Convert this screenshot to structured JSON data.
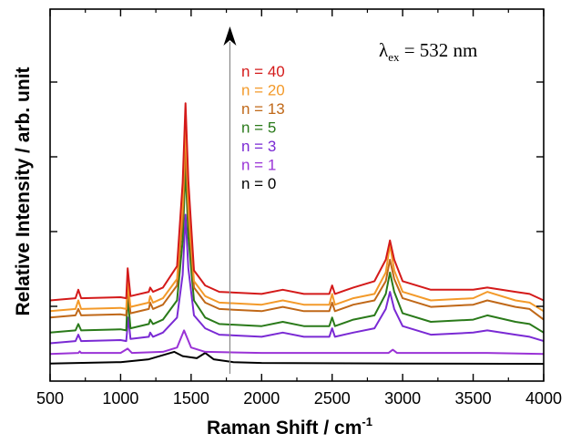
{
  "chart_data": {
    "type": "line",
    "xlabel": "Raman Shift / cm",
    "xlabel_sup": "-1",
    "ylabel": "Relative Intensity / arb. unit",
    "xlim": [
      500,
      4000
    ],
    "ylim": [
      0,
      10
    ],
    "x_ticks": [
      500,
      1000,
      1500,
      2000,
      2500,
      3000,
      3500,
      4000
    ],
    "y_ticks": [
      2.5,
      5,
      7.5
    ],
    "y_tick_labels_shown": false,
    "legend_position": "top-center",
    "annotation": {
      "lambda": "λ",
      "sub": "ex",
      "value": " = 532 nm"
    },
    "arrow": {
      "x": 1775,
      "y_from": 0.3,
      "y_to": 11.5,
      "direction": "up"
    },
    "series": [
      {
        "name": "n = 0",
        "color": "#000000",
        "points": [
          [
            500,
            0.05
          ],
          [
            1000,
            0.12
          ],
          [
            1200,
            0.25
          ],
          [
            1380,
            0.6
          ],
          [
            1440,
            0.4
          ],
          [
            1540,
            0.3
          ],
          [
            1600,
            0.55
          ],
          [
            1660,
            0.25
          ],
          [
            1800,
            0.12
          ],
          [
            2000,
            0.08
          ],
          [
            3000,
            0.05
          ],
          [
            4000,
            0.04
          ]
        ]
      },
      {
        "name": "n = 1",
        "color": "#9a33d6",
        "points": [
          [
            500,
            0.5
          ],
          [
            700,
            0.55
          ],
          [
            710,
            0.62
          ],
          [
            720,
            0.55
          ],
          [
            1000,
            0.55
          ],
          [
            1050,
            0.75
          ],
          [
            1080,
            0.55
          ],
          [
            1300,
            0.6
          ],
          [
            1400,
            0.8
          ],
          [
            1450,
            1.6
          ],
          [
            1500,
            0.8
          ],
          [
            1600,
            0.6
          ],
          [
            2000,
            0.55
          ],
          [
            2900,
            0.55
          ],
          [
            2930,
            0.7
          ],
          [
            2960,
            0.55
          ],
          [
            3600,
            0.55
          ],
          [
            4000,
            0.5
          ]
        ]
      },
      {
        "name": "n = 3",
        "color": "#7a2ad4",
        "points": [
          [
            500,
            1.0
          ],
          [
            680,
            1.1
          ],
          [
            700,
            1.4
          ],
          [
            720,
            1.1
          ],
          [
            1000,
            1.15
          ],
          [
            1040,
            1.1
          ],
          [
            1055,
            2.2
          ],
          [
            1070,
            1.2
          ],
          [
            1200,
            1.3
          ],
          [
            1210,
            1.5
          ],
          [
            1230,
            1.3
          ],
          [
            1300,
            1.5
          ],
          [
            1400,
            2.2
          ],
          [
            1440,
            4.2
          ],
          [
            1460,
            7.0
          ],
          [
            1480,
            4.5
          ],
          [
            1520,
            2.3
          ],
          [
            1600,
            1.7
          ],
          [
            1700,
            1.4
          ],
          [
            2000,
            1.3
          ],
          [
            2150,
            1.5
          ],
          [
            2300,
            1.3
          ],
          [
            2480,
            1.3
          ],
          [
            2500,
            1.7
          ],
          [
            2520,
            1.3
          ],
          [
            2650,
            1.5
          ],
          [
            2800,
            1.7
          ],
          [
            2880,
            2.6
          ],
          [
            2910,
            3.4
          ],
          [
            2940,
            2.6
          ],
          [
            3000,
            1.8
          ],
          [
            3200,
            1.4
          ],
          [
            3500,
            1.5
          ],
          [
            3600,
            1.6
          ],
          [
            3800,
            1.4
          ],
          [
            3900,
            1.3
          ],
          [
            4000,
            1.1
          ]
        ]
      },
      {
        "name": "n = 5",
        "color": "#2a7a1a",
        "points": [
          [
            500,
            1.5
          ],
          [
            680,
            1.6
          ],
          [
            700,
            1.9
          ],
          [
            720,
            1.6
          ],
          [
            1000,
            1.65
          ],
          [
            1040,
            1.6
          ],
          [
            1050,
            3.2
          ],
          [
            1070,
            1.7
          ],
          [
            1200,
            1.9
          ],
          [
            1210,
            2.1
          ],
          [
            1230,
            1.9
          ],
          [
            1300,
            2.1
          ],
          [
            1400,
            3.0
          ],
          [
            1440,
            5.8
          ],
          [
            1460,
            9.2
          ],
          [
            1480,
            6.0
          ],
          [
            1520,
            3.0
          ],
          [
            1600,
            2.2
          ],
          [
            1700,
            1.9
          ],
          [
            2000,
            1.8
          ],
          [
            2150,
            2.0
          ],
          [
            2300,
            1.8
          ],
          [
            2480,
            1.8
          ],
          [
            2500,
            2.2
          ],
          [
            2520,
            1.8
          ],
          [
            2650,
            2.1
          ],
          [
            2800,
            2.3
          ],
          [
            2880,
            3.3
          ],
          [
            2910,
            4.3
          ],
          [
            2940,
            3.4
          ],
          [
            3000,
            2.4
          ],
          [
            3200,
            2.0
          ],
          [
            3500,
            2.1
          ],
          [
            3600,
            2.3
          ],
          [
            3800,
            2.0
          ],
          [
            3900,
            1.9
          ],
          [
            4000,
            1.5
          ]
        ]
      },
      {
        "name": "n = 13",
        "color": "#c06818",
        "points": [
          [
            500,
            2.2
          ],
          [
            680,
            2.3
          ],
          [
            700,
            2.6
          ],
          [
            720,
            2.3
          ],
          [
            1000,
            2.35
          ],
          [
            1040,
            2.3
          ],
          [
            1050,
            3.6
          ],
          [
            1070,
            2.4
          ],
          [
            1200,
            2.6
          ],
          [
            1210,
            2.9
          ],
          [
            1230,
            2.6
          ],
          [
            1300,
            2.8
          ],
          [
            1400,
            3.7
          ],
          [
            1440,
            6.8
          ],
          [
            1460,
            10.3
          ],
          [
            1480,
            7.0
          ],
          [
            1520,
            3.6
          ],
          [
            1600,
            2.9
          ],
          [
            1700,
            2.6
          ],
          [
            2000,
            2.5
          ],
          [
            2150,
            2.7
          ],
          [
            2300,
            2.5
          ],
          [
            2480,
            2.5
          ],
          [
            2500,
            2.9
          ],
          [
            2520,
            2.5
          ],
          [
            2650,
            2.8
          ],
          [
            2800,
            3.0
          ],
          [
            2880,
            3.9
          ],
          [
            2910,
            4.9
          ],
          [
            2940,
            4.0
          ],
          [
            3000,
            3.1
          ],
          [
            3200,
            2.7
          ],
          [
            3500,
            2.8
          ],
          [
            3600,
            3.0
          ],
          [
            3800,
            2.7
          ],
          [
            3900,
            2.6
          ],
          [
            4000,
            2.1
          ]
        ]
      },
      {
        "name": "n = 20",
        "color": "#f39a2a",
        "points": [
          [
            500,
            2.5
          ],
          [
            680,
            2.6
          ],
          [
            700,
            3.0
          ],
          [
            720,
            2.6
          ],
          [
            1000,
            2.65
          ],
          [
            1040,
            2.6
          ],
          [
            1050,
            3.9
          ],
          [
            1070,
            2.7
          ],
          [
            1200,
            2.9
          ],
          [
            1210,
            3.2
          ],
          [
            1230,
            2.9
          ],
          [
            1300,
            3.1
          ],
          [
            1400,
            4.0
          ],
          [
            1440,
            7.5
          ],
          [
            1460,
            11.3
          ],
          [
            1480,
            7.6
          ],
          [
            1520,
            3.9
          ],
          [
            1600,
            3.2
          ],
          [
            1700,
            2.9
          ],
          [
            2000,
            2.8
          ],
          [
            2150,
            3.0
          ],
          [
            2300,
            2.8
          ],
          [
            2480,
            2.8
          ],
          [
            2500,
            3.3
          ],
          [
            2520,
            2.8
          ],
          [
            2650,
            3.1
          ],
          [
            2800,
            3.3
          ],
          [
            2880,
            4.3
          ],
          [
            2910,
            5.6
          ],
          [
            2940,
            4.4
          ],
          [
            3000,
            3.4
          ],
          [
            3200,
            3.0
          ],
          [
            3500,
            3.1
          ],
          [
            3600,
            3.4
          ],
          [
            3800,
            3.0
          ],
          [
            3900,
            2.9
          ],
          [
            4000,
            2.5
          ]
        ]
      },
      {
        "name": "n = 40",
        "color": "#d41a1a",
        "points": [
          [
            500,
            3.0
          ],
          [
            680,
            3.1
          ],
          [
            700,
            3.5
          ],
          [
            720,
            3.1
          ],
          [
            1000,
            3.15
          ],
          [
            1040,
            3.1
          ],
          [
            1050,
            4.5
          ],
          [
            1070,
            3.2
          ],
          [
            1200,
            3.4
          ],
          [
            1210,
            3.6
          ],
          [
            1230,
            3.4
          ],
          [
            1300,
            3.6
          ],
          [
            1400,
            4.6
          ],
          [
            1440,
            8.5
          ],
          [
            1460,
            12.2
          ],
          [
            1480,
            8.6
          ],
          [
            1520,
            4.4
          ],
          [
            1600,
            3.7
          ],
          [
            1700,
            3.4
          ],
          [
            2000,
            3.3
          ],
          [
            2150,
            3.5
          ],
          [
            2300,
            3.3
          ],
          [
            2480,
            3.3
          ],
          [
            2500,
            3.7
          ],
          [
            2520,
            3.3
          ],
          [
            2650,
            3.6
          ],
          [
            2800,
            3.9
          ],
          [
            2880,
            4.9
          ],
          [
            2910,
            5.8
          ],
          [
            2940,
            4.9
          ],
          [
            3000,
            3.9
          ],
          [
            3200,
            3.5
          ],
          [
            3500,
            3.5
          ],
          [
            3600,
            3.6
          ],
          [
            3800,
            3.4
          ],
          [
            3900,
            3.3
          ],
          [
            4000,
            3.0
          ]
        ]
      }
    ],
    "legend_order": [
      6,
      5,
      4,
      3,
      2,
      1,
      0
    ]
  }
}
